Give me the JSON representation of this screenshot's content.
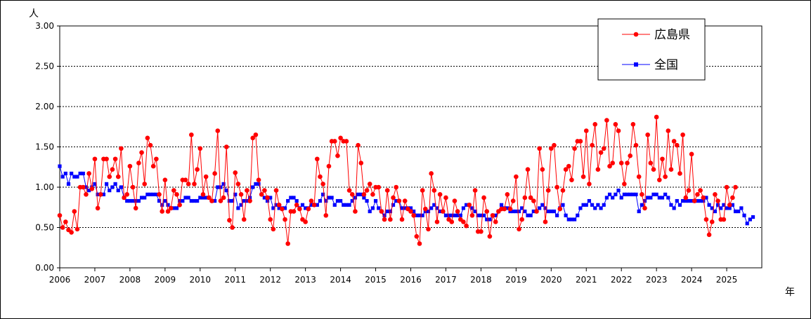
{
  "chart_data": {
    "type": "line",
    "ylabel": "人",
    "xunit": "年",
    "ylim": [
      0,
      3
    ],
    "y_ticks": [
      "0.00",
      "0.50",
      "1.00",
      "1.50",
      "2.00",
      "2.50",
      "3.00"
    ],
    "x_ticks": [
      "2006",
      "2007",
      "2008",
      "2009",
      "2010",
      "2011",
      "2012",
      "2013",
      "2014",
      "2015",
      "2016",
      "2017",
      "2018",
      "2019",
      "2020",
      "2021",
      "2022",
      "2023",
      "2024",
      "2025"
    ],
    "grid": true,
    "legend_position": "top-right",
    "start_month": "2006-01",
    "series": [
      {
        "name": "広島県",
        "color": "#ff0000",
        "marker": "circle",
        "values": [
          0.65,
          0.5,
          0.57,
          0.47,
          0.44,
          0.7,
          0.48,
          1.0,
          1.0,
          0.91,
          1.17,
          0.98,
          1.35,
          0.74,
          0.91,
          1.35,
          1.35,
          1.13,
          1.22,
          1.35,
          1.13,
          1.48,
          0.87,
          0.91,
          1.26,
          1.0,
          0.74,
          1.3,
          1.43,
          1.04,
          1.61,
          1.52,
          1.26,
          1.35,
          0.91,
          0.7,
          1.09,
          0.7,
          0.74,
          0.96,
          0.91,
          0.78,
          1.09,
          1.09,
          1.04,
          1.65,
          1.04,
          1.22,
          1.48,
          0.91,
          1.13,
          0.87,
          0.83,
          1.17,
          1.7,
          0.83,
          0.87,
          1.5,
          0.59,
          0.5,
          1.18,
          1.04,
          0.91,
          0.6,
          0.96,
          0.83,
          1.61,
          1.65,
          1.09,
          0.91,
          0.96,
          0.87,
          0.6,
          0.48,
          0.96,
          0.78,
          0.73,
          0.6,
          0.3,
          0.7,
          0.7,
          0.78,
          0.73,
          0.6,
          0.57,
          0.73,
          0.83,
          0.78,
          1.35,
          1.13,
          1.04,
          0.65,
          1.26,
          1.57,
          1.57,
          1.39,
          1.61,
          1.57,
          1.57,
          0.96,
          0.91,
          0.7,
          1.52,
          1.3,
          0.91,
          0.96,
          1.04,
          0.91,
          1.0,
          1.0,
          0.7,
          0.6,
          0.96,
          0.6,
          0.87,
          1.0,
          0.83,
          0.6,
          0.83,
          0.73,
          0.7,
          0.65,
          0.39,
          0.3,
          0.96,
          0.73,
          0.48,
          1.17,
          0.96,
          0.57,
          0.91,
          0.7,
          0.87,
          0.6,
          0.57,
          0.83,
          0.7,
          0.6,
          0.57,
          0.52,
          0.78,
          0.65,
          0.96,
          0.45,
          0.45,
          0.87,
          0.7,
          0.39,
          0.65,
          0.57,
          0.7,
          0.73,
          0.73,
          0.91,
          0.73,
          0.83,
          1.13,
          0.48,
          0.6,
          0.87,
          1.22,
          0.87,
          0.83,
          0.7,
          1.48,
          1.22,
          0.57,
          0.96,
          1.48,
          1.52,
          1.0,
          0.73,
          0.96,
          1.22,
          1.26,
          1.09,
          1.48,
          1.57,
          1.57,
          1.13,
          1.7,
          1.04,
          1.52,
          1.78,
          1.22,
          1.43,
          1.48,
          1.83,
          1.26,
          1.3,
          1.78,
          1.7,
          1.3,
          1.04,
          1.3,
          1.39,
          1.78,
          1.52,
          1.13,
          0.91,
          0.74,
          1.65,
          1.3,
          1.22,
          1.87,
          1.09,
          1.35,
          1.13,
          1.7,
          1.22,
          1.57,
          1.52,
          1.17,
          1.65,
          0.87,
          0.96,
          1.41,
          0.83,
          0.91,
          0.96,
          0.87,
          0.6,
          0.41,
          0.57,
          0.91,
          0.83,
          0.6,
          0.6,
          1.0,
          0.78,
          0.87,
          1.0
        ]
      },
      {
        "name": "全国",
        "color": "#0000ff",
        "marker": "square",
        "values": [
          1.26,
          1.13,
          1.17,
          1.04,
          1.17,
          1.13,
          1.13,
          1.17,
          1.17,
          1.0,
          0.96,
          1.0,
          1.04,
          0.91,
          0.91,
          0.91,
          1.04,
          0.96,
          1.0,
          1.04,
          0.96,
          1.0,
          0.87,
          0.83,
          0.83,
          0.83,
          0.83,
          0.83,
          0.87,
          0.87,
          0.91,
          0.91,
          0.91,
          0.91,
          0.83,
          0.78,
          0.83,
          0.78,
          0.74,
          0.74,
          0.74,
          0.83,
          0.83,
          0.87,
          0.87,
          0.83,
          0.83,
          0.83,
          0.87,
          0.87,
          0.87,
          0.87,
          0.83,
          0.83,
          1.0,
          1.0,
          1.04,
          0.96,
          0.83,
          0.83,
          0.91,
          0.74,
          0.78,
          0.83,
          0.83,
          0.87,
          1.0,
          1.04,
          1.04,
          0.91,
          0.87,
          0.83,
          0.87,
          0.74,
          0.78,
          0.74,
          0.74,
          0.74,
          0.83,
          0.87,
          0.87,
          0.83,
          0.74,
          0.78,
          0.74,
          0.74,
          0.78,
          0.78,
          0.78,
          0.83,
          0.91,
          0.83,
          0.87,
          0.87,
          0.78,
          0.83,
          0.83,
          0.78,
          0.78,
          0.78,
          0.83,
          0.87,
          0.91,
          0.91,
          0.87,
          0.83,
          0.7,
          0.74,
          0.83,
          0.74,
          0.7,
          0.65,
          0.7,
          0.7,
          0.78,
          0.83,
          0.83,
          0.74,
          0.74,
          0.74,
          0.74,
          0.7,
          0.65,
          0.65,
          0.65,
          0.7,
          0.7,
          0.74,
          0.78,
          0.74,
          0.7,
          0.7,
          0.65,
          0.65,
          0.65,
          0.65,
          0.65,
          0.65,
          0.74,
          0.78,
          0.78,
          0.74,
          0.7,
          0.65,
          0.65,
          0.65,
          0.6,
          0.6,
          0.65,
          0.65,
          0.7,
          0.78,
          0.74,
          0.74,
          0.7,
          0.7,
          0.7,
          0.7,
          0.74,
          0.7,
          0.65,
          0.65,
          0.7,
          0.7,
          0.74,
          0.78,
          0.74,
          0.7,
          0.7,
          0.7,
          0.65,
          0.74,
          0.78,
          0.65,
          0.6,
          0.6,
          0.6,
          0.65,
          0.74,
          0.78,
          0.78,
          0.83,
          0.78,
          0.74,
          0.78,
          0.74,
          0.78,
          0.87,
          0.91,
          0.87,
          0.91,
          0.96,
          0.87,
          0.91,
          0.91,
          0.91,
          0.91,
          0.91,
          0.7,
          0.78,
          0.83,
          0.87,
          0.87,
          0.91,
          0.91,
          0.87,
          0.87,
          0.91,
          0.87,
          0.78,
          0.74,
          0.83,
          0.78,
          0.83,
          0.83,
          0.83,
          0.83,
          0.83,
          0.83,
          0.83,
          0.83,
          0.87,
          0.78,
          0.74,
          0.7,
          0.78,
          0.74,
          0.78,
          0.74,
          0.74,
          0.78,
          0.7,
          0.7,
          0.74,
          0.65,
          0.55,
          0.6,
          0.63
        ]
      }
    ]
  }
}
